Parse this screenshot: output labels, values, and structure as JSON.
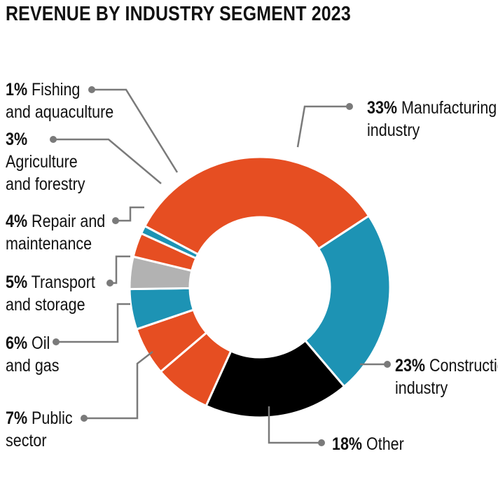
{
  "title": "REVENUE BY INDUSTRY SEGMENT 2023",
  "chart_data": {
    "type": "pie",
    "donut": true,
    "title": "REVENUE BY INDUSTRY SEGMENT 2023",
    "slices": [
      {
        "name": "Manufacturing industry",
        "value": 33,
        "pct": "33%",
        "label_lines": [
          "Manufacturing",
          "industry"
        ],
        "color": "#e64e22"
      },
      {
        "name": "Construction industry",
        "value": 23,
        "pct": "23%",
        "label_lines": [
          "Construction",
          "industry"
        ],
        "color": "#1d93b4"
      },
      {
        "name": "Other",
        "value": 18,
        "pct": "18%",
        "label_lines": [
          "Other"
        ],
        "color": "#000000"
      },
      {
        "name": "Public sector",
        "value": 7,
        "pct": "7%",
        "label_lines": [
          "Public",
          "sector"
        ],
        "color": "#e64e22"
      },
      {
        "name": "Oil and gas",
        "value": 6,
        "pct": "6%",
        "label_lines": [
          "Oil",
          "and gas"
        ],
        "color": "#e64e22"
      },
      {
        "name": "Transport and storage",
        "value": 5,
        "pct": "5%",
        "label_lines": [
          "Transport",
          "and storage"
        ],
        "color": "#1d93b4"
      },
      {
        "name": "Repair and maintenance",
        "value": 4,
        "pct": "4%",
        "label_lines": [
          "Repair and",
          "maintenance"
        ],
        "color": "#b2b2b2"
      },
      {
        "name": "Agriculture and forestry",
        "value": 3,
        "pct": "3%",
        "label_lines": [
          "",
          "Agriculture",
          "and forestry"
        ],
        "color": "#e64e22"
      },
      {
        "name": "Fishing and aquaculture",
        "value": 1,
        "pct": "1%",
        "label_lines": [
          "Fishing",
          "and aquaculture"
        ],
        "color": "#1d93b4"
      }
    ]
  }
}
